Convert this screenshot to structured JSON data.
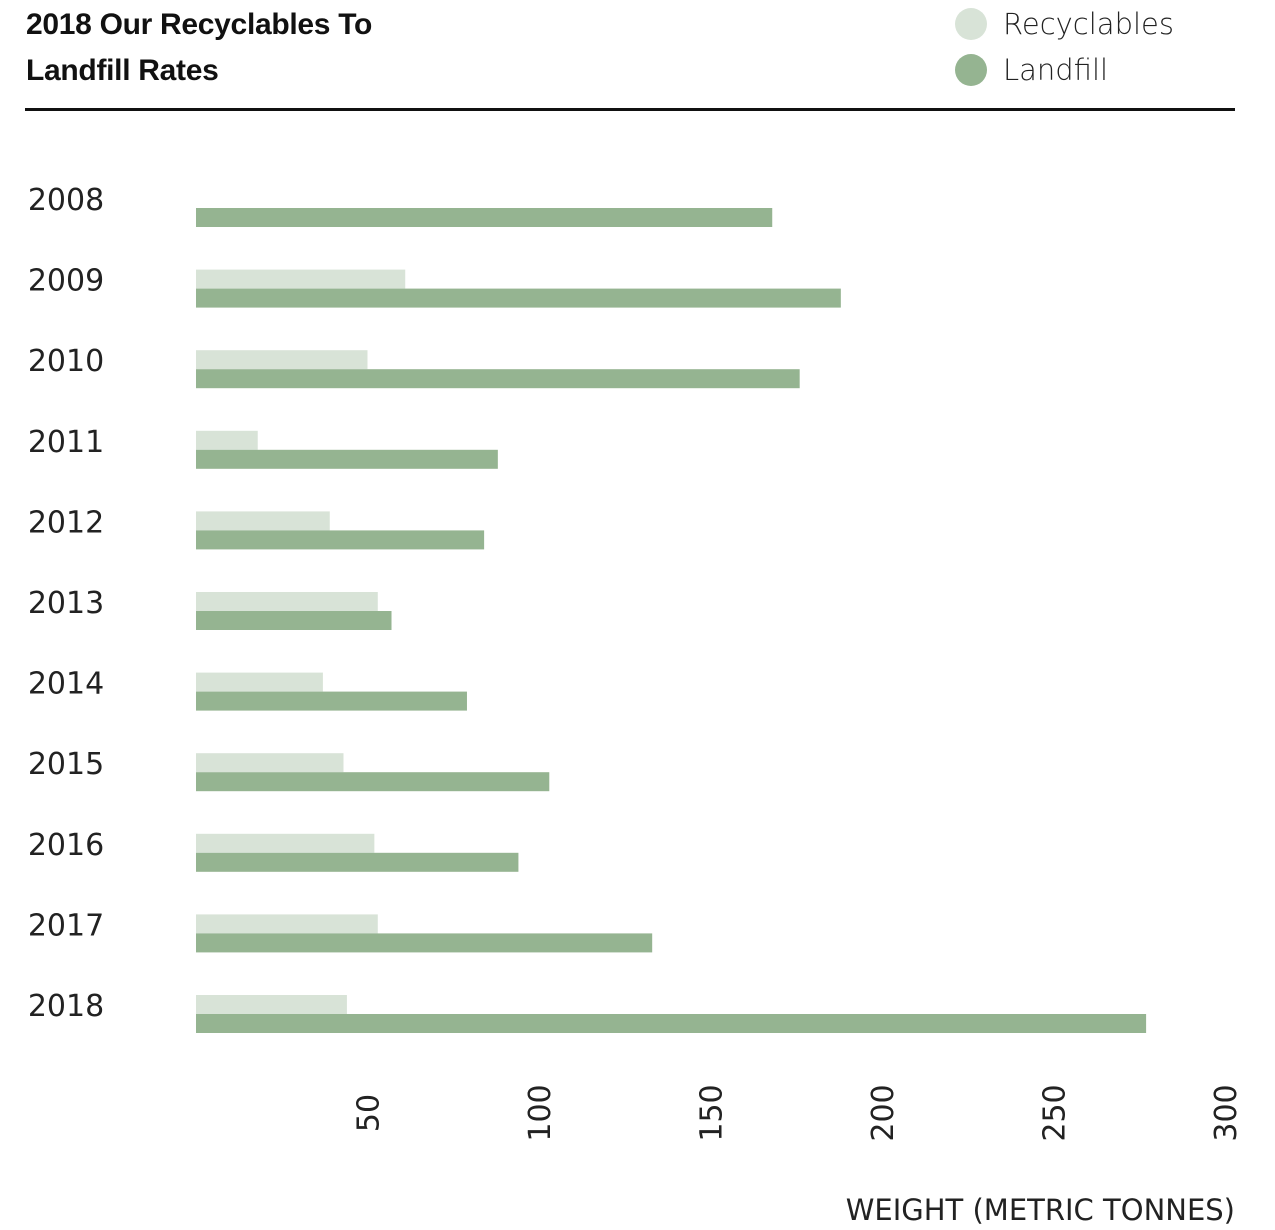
{
  "chart_data": {
    "type": "bar",
    "orientation": "horizontal",
    "title_line1": "2018 Our Recyclables To",
    "title_line2": "Landfill Rates",
    "xlabel": "WEIGHT (METRIC TONNES)",
    "ylabel": "",
    "xlim": [
      0,
      300
    ],
    "xticks": [
      50,
      100,
      150,
      200,
      250,
      300
    ],
    "grid": false,
    "legend_position": "top-right",
    "categories": [
      "2008",
      "2009",
      "2010",
      "2011",
      "2012",
      "2013",
      "2014",
      "2015",
      "2016",
      "2017",
      "2018"
    ],
    "series": [
      {
        "name": "Recyclables",
        "color": "#d8e3d7",
        "values": [
          0,
          61,
          50,
          18,
          39,
          53,
          37,
          43,
          52,
          53,
          44
        ]
      },
      {
        "name": "Landfill",
        "color": "#95b491",
        "values": [
          168,
          188,
          176,
          88,
          84,
          57,
          79,
          103,
          94,
          133,
          277
        ]
      }
    ]
  }
}
